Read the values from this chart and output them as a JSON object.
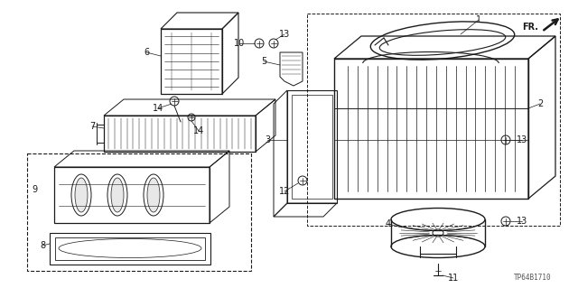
{
  "bg_color": "#ffffff",
  "line_color": "#1a1a1a",
  "label_fontsize": 7.0,
  "watermark": "TP64B1710",
  "fig_width": 6.4,
  "fig_height": 3.19,
  "dpi": 100,
  "fr_text": "FR.",
  "part_numbers": [
    "1",
    "2",
    "3",
    "4",
    "5",
    "6",
    "7",
    "8",
    "9",
    "10",
    "11",
    "12",
    "13",
    "13",
    "13",
    "14",
    "14"
  ]
}
